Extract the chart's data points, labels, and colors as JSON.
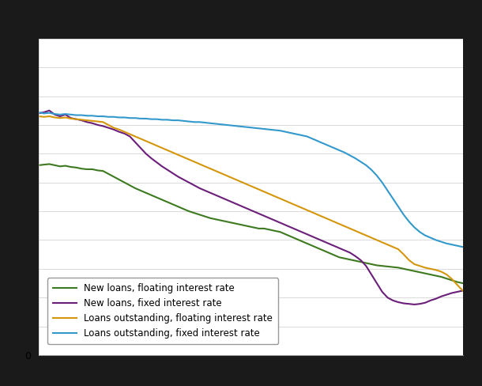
{
  "background_color": "#1a1a1a",
  "plot_bg": "#ffffff",
  "grid_color": "#cccccc",
  "legend_labels": [
    "New loans, floating interest rate",
    "New loans, fixed interest rate",
    "Loans outstanding, floating interest rate",
    "Loans outstanding, fixed interest rate"
  ],
  "line_colors": [
    "#3d7a1f",
    "#6b1f7a",
    "#d4960a",
    "#3399cc"
  ],
  "line_width": 1.5,
  "ylim_min": 0,
  "ylim_max": 5.5,
  "new_loans_floating": [
    3.3,
    3.31,
    3.32,
    3.3,
    3.28,
    3.29,
    3.27,
    3.26,
    3.24,
    3.23,
    3.23,
    3.21,
    3.2,
    3.15,
    3.1,
    3.05,
    3.0,
    2.95,
    2.9,
    2.86,
    2.82,
    2.78,
    2.74,
    2.7,
    2.66,
    2.62,
    2.58,
    2.54,
    2.5,
    2.47,
    2.44,
    2.41,
    2.38,
    2.36,
    2.34,
    2.32,
    2.3,
    2.28,
    2.26,
    2.24,
    2.22,
    2.2,
    2.2,
    2.18,
    2.16,
    2.14,
    2.1,
    2.06,
    2.02,
    1.98,
    1.94,
    1.9,
    1.86,
    1.82,
    1.78,
    1.74,
    1.7,
    1.68,
    1.66,
    1.64,
    1.62,
    1.6,
    1.58,
    1.56,
    1.55,
    1.54,
    1.53,
    1.52,
    1.5,
    1.48,
    1.46,
    1.44,
    1.42,
    1.4,
    1.38,
    1.36,
    1.33,
    1.3,
    1.27,
    1.25
  ],
  "new_loans_fixed": [
    4.2,
    4.22,
    4.25,
    4.18,
    4.15,
    4.18,
    4.12,
    4.1,
    4.08,
    4.05,
    4.03,
    4.0,
    3.98,
    3.95,
    3.92,
    3.88,
    3.85,
    3.8,
    3.7,
    3.6,
    3.5,
    3.42,
    3.35,
    3.28,
    3.22,
    3.16,
    3.1,
    3.05,
    3.0,
    2.95,
    2.9,
    2.86,
    2.82,
    2.78,
    2.74,
    2.7,
    2.66,
    2.62,
    2.58,
    2.54,
    2.5,
    2.46,
    2.42,
    2.38,
    2.34,
    2.3,
    2.26,
    2.22,
    2.18,
    2.14,
    2.1,
    2.06,
    2.02,
    1.98,
    1.94,
    1.9,
    1.86,
    1.82,
    1.78,
    1.72,
    1.65,
    1.55,
    1.4,
    1.25,
    1.1,
    1.0,
    0.95,
    0.92,
    0.9,
    0.89,
    0.88,
    0.89,
    0.91,
    0.95,
    0.98,
    1.02,
    1.05,
    1.08,
    1.1,
    1.12
  ],
  "loans_outstanding_floating": [
    4.15,
    4.14,
    4.15,
    4.13,
    4.12,
    4.13,
    4.11,
    4.1,
    4.09,
    4.08,
    4.07,
    4.06,
    4.05,
    4.0,
    3.95,
    3.92,
    3.88,
    3.84,
    3.8,
    3.76,
    3.72,
    3.68,
    3.64,
    3.6,
    3.56,
    3.52,
    3.48,
    3.44,
    3.4,
    3.36,
    3.32,
    3.28,
    3.24,
    3.2,
    3.16,
    3.12,
    3.08,
    3.04,
    3.0,
    2.96,
    2.92,
    2.88,
    2.84,
    2.8,
    2.76,
    2.72,
    2.68,
    2.64,
    2.6,
    2.56,
    2.52,
    2.48,
    2.44,
    2.4,
    2.36,
    2.32,
    2.28,
    2.24,
    2.2,
    2.16,
    2.12,
    2.08,
    2.04,
    2.0,
    1.96,
    1.92,
    1.88,
    1.84,
    1.75,
    1.65,
    1.58,
    1.55,
    1.52,
    1.5,
    1.48,
    1.45,
    1.4,
    1.32,
    1.22,
    1.12
  ],
  "loans_outstanding_fixed": [
    4.22,
    4.2,
    4.21,
    4.19,
    4.18,
    4.19,
    4.18,
    4.17,
    4.17,
    4.16,
    4.16,
    4.15,
    4.15,
    4.14,
    4.14,
    4.13,
    4.13,
    4.12,
    4.12,
    4.11,
    4.11,
    4.1,
    4.1,
    4.09,
    4.09,
    4.08,
    4.08,
    4.07,
    4.06,
    4.05,
    4.05,
    4.04,
    4.03,
    4.02,
    4.01,
    4.0,
    3.99,
    3.98,
    3.97,
    3.96,
    3.95,
    3.94,
    3.93,
    3.92,
    3.91,
    3.9,
    3.88,
    3.86,
    3.84,
    3.82,
    3.8,
    3.76,
    3.72,
    3.68,
    3.64,
    3.6,
    3.56,
    3.52,
    3.47,
    3.42,
    3.36,
    3.3,
    3.22,
    3.12,
    3.0,
    2.86,
    2.72,
    2.58,
    2.44,
    2.32,
    2.22,
    2.14,
    2.08,
    2.04,
    2.0,
    1.97,
    1.94,
    1.92,
    1.9,
    1.88
  ]
}
